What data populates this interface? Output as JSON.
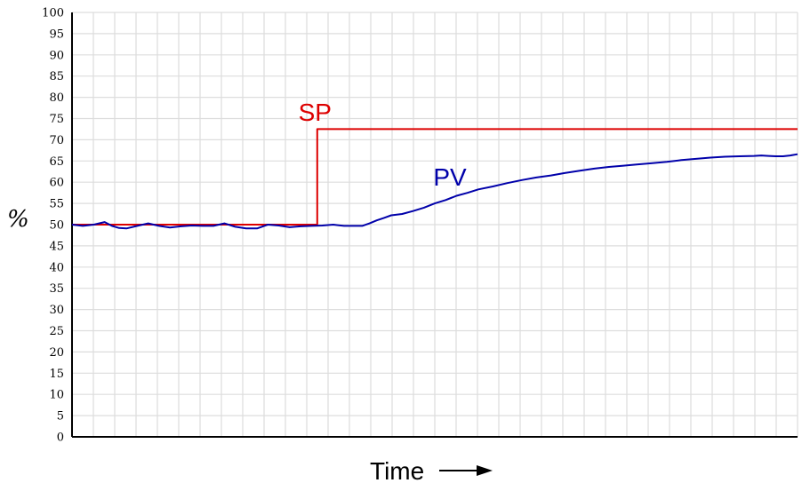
{
  "chart_data": {
    "type": "line",
    "title": "",
    "xlabel": "Time",
    "ylabel": "%",
    "ylim": [
      0,
      100
    ],
    "yticks": [
      0,
      5,
      10,
      15,
      20,
      25,
      30,
      35,
      40,
      45,
      50,
      55,
      60,
      65,
      70,
      75,
      80,
      85,
      90,
      95,
      100
    ],
    "xlim": [
      0,
      100
    ],
    "grid": true,
    "xlabel_arrow": true,
    "series": [
      {
        "name": "SP",
        "color": "#dd0000",
        "x": [
          0,
          33.8,
          33.8,
          100
        ],
        "y": [
          50,
          50,
          72.5,
          72.5
        ]
      },
      {
        "name": "PV",
        "color": "#0000aa",
        "x": [
          0,
          1.5,
          3,
          4.5,
          5.5,
          6.5,
          7.5,
          9,
          10.5,
          12,
          13.5,
          15,
          16.5,
          18,
          19.5,
          21,
          22.5,
          24,
          25.5,
          27,
          28.5,
          30,
          31.5,
          33,
          34.5,
          36,
          37.5,
          39,
          40,
          41,
          42,
          43,
          44,
          45.5,
          47,
          48.5,
          50,
          51.5,
          53,
          54.5,
          56,
          58,
          60,
          62,
          64,
          66,
          68,
          70,
          72,
          74,
          76,
          78,
          80,
          82,
          84,
          86,
          88,
          90,
          92,
          94,
          95,
          96,
          97,
          98,
          99,
          100
        ],
        "y": [
          50,
          49.7,
          50,
          50.6,
          49.7,
          49.2,
          49.1,
          49.7,
          50.3,
          49.7,
          49.3,
          49.6,
          49.8,
          49.7,
          49.7,
          50.3,
          49.5,
          49.1,
          49.1,
          50,
          49.8,
          49.4,
          49.6,
          49.7,
          49.8,
          50,
          49.7,
          49.7,
          49.7,
          50.3,
          51,
          51.6,
          52.2,
          52.5,
          53.2,
          54,
          55,
          55.8,
          56.8,
          57.5,
          58.3,
          59,
          59.8,
          60.5,
          61.1,
          61.6,
          62.2,
          62.7,
          63.2,
          63.6,
          63.9,
          64.2,
          64.5,
          64.8,
          65.2,
          65.5,
          65.8,
          66,
          66.1,
          66.2,
          66.3,
          66.2,
          66.1,
          66.1,
          66.3,
          66.6
        ]
      }
    ],
    "annotations": [
      {
        "series": "SP",
        "text": "SP",
        "x": 31.2,
        "y": 74.5
      },
      {
        "series": "PV",
        "text": "PV",
        "x": 49.8,
        "y": 59.2
      }
    ]
  }
}
